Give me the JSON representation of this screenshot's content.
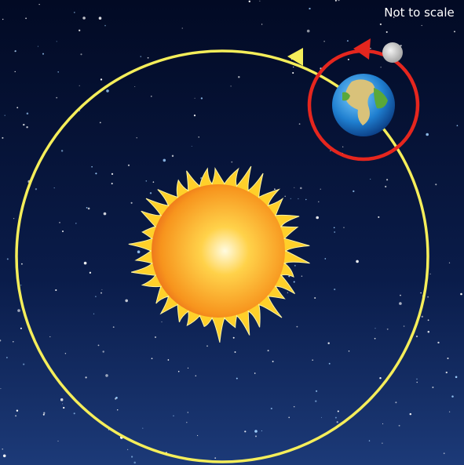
{
  "label": "Not to scale"
}
